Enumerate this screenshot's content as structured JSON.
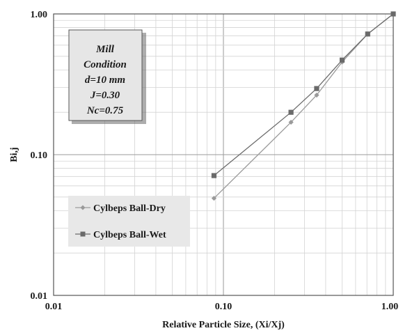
{
  "chart_data": {
    "type": "line",
    "x_scale": "log",
    "y_scale": "log",
    "xlim": [
      0.01,
      1.0
    ],
    "ylim": [
      0.01,
      1.0
    ],
    "xlabel": "Relative Particle Size, (Xi/Xj)",
    "ylabel": "Bi,j",
    "x_ticks": [
      "0.01",
      "0.10",
      "1.00"
    ],
    "y_ticks": [
      "0.01",
      "0.10",
      "1.00"
    ],
    "grid": true,
    "legend_position": "lower-left",
    "condition_box": [
      "Mill",
      "Condition",
      "d=10 mm",
      "J=0.30",
      "Nc=0.75"
    ],
    "series": [
      {
        "name": "Cylbeps Ball-Dry",
        "marker": "diamond",
        "color": "#9a9a9a",
        "x": [
          0.088,
          0.25,
          0.354,
          0.5,
          0.707,
          1.0
        ],
        "y": [
          0.049,
          0.17,
          0.265,
          0.455,
          0.72,
          1.0
        ]
      },
      {
        "name": "Cylbeps Ball-Wet",
        "marker": "square",
        "color": "#6a6a6a",
        "x": [
          0.088,
          0.25,
          0.354,
          0.5,
          0.707,
          1.0
        ],
        "y": [
          0.071,
          0.2,
          0.295,
          0.47,
          0.72,
          1.0
        ]
      }
    ]
  }
}
